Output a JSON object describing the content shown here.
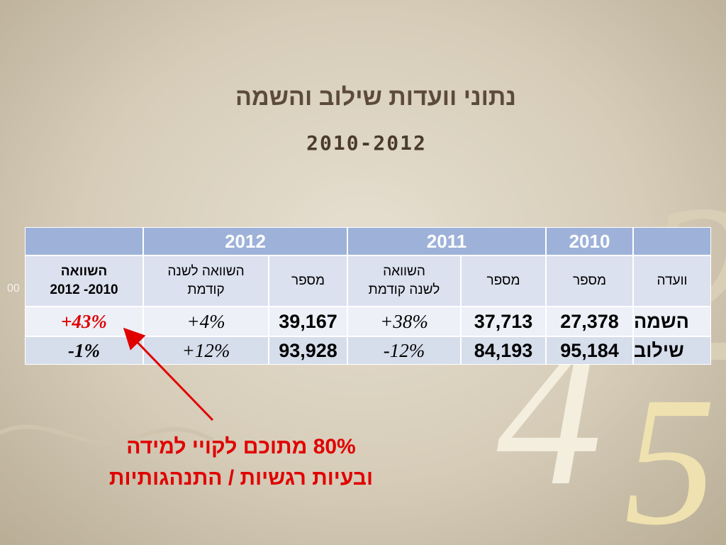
{
  "title": "נתוני וועדות שילוב והשמה",
  "subtitle": "2010-2012",
  "decor": {
    "left_fragment": "00",
    "digit_4": "4",
    "digit_5": "5",
    "digit_2": "2"
  },
  "table": {
    "years": [
      "2010",
      "2011",
      "2012"
    ],
    "columns": [
      "וועדה",
      "מספר",
      "מספר",
      "השוואה\nלשנה קודמת",
      "מספר",
      "השוואה לשנה\nקודמת",
      "השוואה\n2010- 2012"
    ],
    "rows": [
      [
        "השמה",
        "27,378",
        "37,713",
        "+38%",
        "39,167",
        "+4%",
        "+43%"
      ],
      [
        "שילוב",
        "95,184",
        "84,193",
        "-12%",
        "93,928",
        "+12%",
        "-1%"
      ]
    ]
  },
  "annotation": [
    "80% מתוכם לקויי למידה",
    "ובעיות רגשיות / התנהגותיות"
  ]
}
